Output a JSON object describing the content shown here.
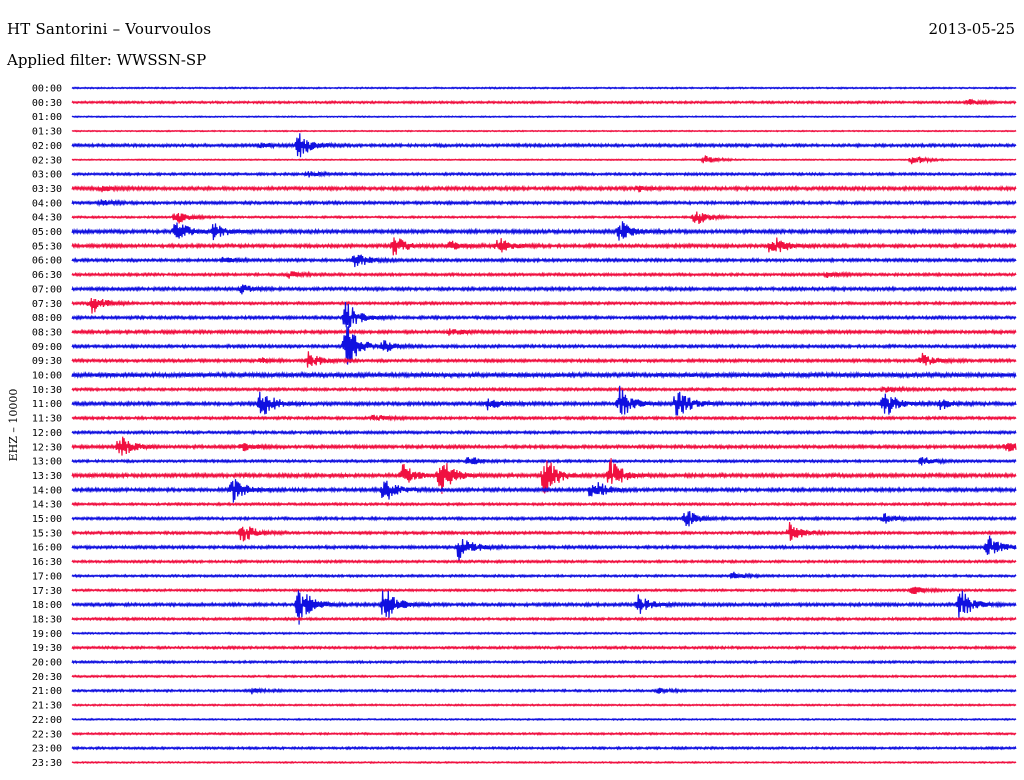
{
  "header": {
    "station": "HT Santorini – Vourvoulos",
    "date": "2013-05-25",
    "filter": "Applied filter: WWSSN-SP"
  },
  "chart_data": {
    "type": "line",
    "ylabel": "EHZ – 10000",
    "colors": {
      "blue": "#1010e0",
      "red": "#f01040"
    },
    "traces": [
      {
        "label": "00:00",
        "color": "blue",
        "noise": 0.6,
        "events": []
      },
      {
        "label": "00:30",
        "color": "red",
        "noise": 0.9,
        "events": [
          [
            0.95,
            3
          ]
        ]
      },
      {
        "label": "01:00",
        "color": "blue",
        "noise": 0.5,
        "events": []
      },
      {
        "label": "01:30",
        "color": "red",
        "noise": 0.5,
        "events": []
      },
      {
        "label": "02:00",
        "color": "blue",
        "noise": 1.2,
        "events": [
          [
            0.24,
            14
          ],
          [
            0.2,
            3
          ]
        ]
      },
      {
        "label": "02:30",
        "color": "red",
        "noise": 0.5,
        "events": [
          [
            0.67,
            5
          ],
          [
            0.89,
            6
          ]
        ]
      },
      {
        "label": "03:00",
        "color": "blue",
        "noise": 1.0,
        "events": [
          [
            0.25,
            3
          ]
        ]
      },
      {
        "label": "03:30",
        "color": "red",
        "noise": 1.4,
        "events": [
          [
            0.03,
            3
          ],
          [
            0.6,
            3
          ]
        ]
      },
      {
        "label": "04:00",
        "color": "blue",
        "noise": 1.2,
        "events": [
          [
            0.03,
            3
          ]
        ]
      },
      {
        "label": "04:30",
        "color": "red",
        "noise": 0.8,
        "events": [
          [
            0.11,
            8
          ],
          [
            0.66,
            10
          ]
        ]
      },
      {
        "label": "05:00",
        "color": "blue",
        "noise": 1.5,
        "events": [
          [
            0.11,
            12
          ],
          [
            0.15,
            9
          ],
          [
            0.58,
            12
          ]
        ]
      },
      {
        "label": "05:30",
        "color": "red",
        "noise": 1.4,
        "events": [
          [
            0.34,
            12
          ],
          [
            0.4,
            5
          ],
          [
            0.45,
            10
          ],
          [
            0.74,
            14
          ]
        ]
      },
      {
        "label": "06:00",
        "color": "blue",
        "noise": 1.2,
        "events": [
          [
            0.3,
            10
          ],
          [
            0.16,
            3
          ]
        ]
      },
      {
        "label": "06:30",
        "color": "red",
        "noise": 1.1,
        "events": [
          [
            0.23,
            4
          ],
          [
            0.8,
            3
          ]
        ]
      },
      {
        "label": "07:00",
        "color": "blue",
        "noise": 1.3,
        "events": [
          [
            0.18,
            5
          ]
        ]
      },
      {
        "label": "07:30",
        "color": "red",
        "noise": 1.1,
        "events": [
          [
            0.02,
            12
          ]
        ]
      },
      {
        "label": "08:00",
        "color": "blue",
        "noise": 1.2,
        "events": [
          [
            0.29,
            18
          ]
        ]
      },
      {
        "label": "08:30",
        "color": "red",
        "noise": 1.3,
        "events": [
          [
            0.4,
            4
          ]
        ]
      },
      {
        "label": "09:00",
        "color": "blue",
        "noise": 1.2,
        "events": [
          [
            0.29,
            25
          ],
          [
            0.33,
            6
          ]
        ]
      },
      {
        "label": "09:30",
        "color": "red",
        "noise": 1.2,
        "events": [
          [
            0.25,
            10
          ],
          [
            0.9,
            8
          ],
          [
            0.2,
            3
          ]
        ]
      },
      {
        "label": "10:00",
        "color": "blue",
        "noise": 1.8,
        "events": []
      },
      {
        "label": "10:30",
        "color": "red",
        "noise": 1.1,
        "events": [
          [
            0.86,
            4
          ]
        ]
      },
      {
        "label": "11:00",
        "color": "blue",
        "noise": 1.4,
        "events": [
          [
            0.2,
            16
          ],
          [
            0.44,
            7
          ],
          [
            0.58,
            18
          ],
          [
            0.64,
            18
          ],
          [
            0.86,
            16
          ],
          [
            0.92,
            6
          ]
        ]
      },
      {
        "label": "11:30",
        "color": "red",
        "noise": 1.1,
        "events": [
          [
            0.32,
            4
          ]
        ]
      },
      {
        "label": "12:00",
        "color": "blue",
        "noise": 1.1,
        "events": []
      },
      {
        "label": "12:30",
        "color": "red",
        "noise": 1.3,
        "events": [
          [
            0.05,
            14
          ],
          [
            0.18,
            5
          ],
          [
            0.99,
            6
          ]
        ]
      },
      {
        "label": "13:00",
        "color": "blue",
        "noise": 1.0,
        "events": [
          [
            0.42,
            6
          ],
          [
            0.9,
            5
          ]
        ]
      },
      {
        "label": "13:30",
        "color": "red",
        "noise": 1.5,
        "events": [
          [
            0.35,
            12
          ],
          [
            0.39,
            20
          ],
          [
            0.5,
            22
          ],
          [
            0.57,
            18
          ]
        ]
      },
      {
        "label": "14:00",
        "color": "blue",
        "noise": 1.4,
        "events": [
          [
            0.17,
            14
          ],
          [
            0.33,
            16
          ],
          [
            0.55,
            15
          ]
        ]
      },
      {
        "label": "14:30",
        "color": "red",
        "noise": 1.0,
        "events": []
      },
      {
        "label": "15:00",
        "color": "blue",
        "noise": 1.1,
        "events": [
          [
            0.65,
            10
          ],
          [
            0.86,
            5
          ]
        ]
      },
      {
        "label": "15:30",
        "color": "red",
        "noise": 1.1,
        "events": [
          [
            0.18,
            12
          ],
          [
            0.76,
            12
          ]
        ]
      },
      {
        "label": "16:00",
        "color": "blue",
        "noise": 1.2,
        "events": [
          [
            0.41,
            16
          ],
          [
            0.97,
            14
          ]
        ]
      },
      {
        "label": "16:30",
        "color": "red",
        "noise": 1.0,
        "events": []
      },
      {
        "label": "17:00",
        "color": "blue",
        "noise": 0.9,
        "events": [
          [
            0.7,
            4
          ]
        ]
      },
      {
        "label": "17:30",
        "color": "red",
        "noise": 0.9,
        "events": [
          [
            0.89,
            5
          ]
        ]
      },
      {
        "label": "18:00",
        "color": "blue",
        "noise": 1.3,
        "events": [
          [
            0.24,
            22
          ],
          [
            0.33,
            20
          ],
          [
            0.6,
            10
          ],
          [
            0.94,
            18
          ]
        ]
      },
      {
        "label": "18:30",
        "color": "red",
        "noise": 1.0,
        "events": []
      },
      {
        "label": "19:00",
        "color": "blue",
        "noise": 0.7,
        "events": []
      },
      {
        "label": "19:30",
        "color": "red",
        "noise": 1.0,
        "events": []
      },
      {
        "label": "20:00",
        "color": "blue",
        "noise": 0.9,
        "events": []
      },
      {
        "label": "20:30",
        "color": "red",
        "noise": 0.8,
        "events": []
      },
      {
        "label": "21:00",
        "color": "blue",
        "noise": 0.9,
        "events": [
          [
            0.19,
            3
          ],
          [
            0.62,
            3
          ]
        ]
      },
      {
        "label": "21:30",
        "color": "red",
        "noise": 0.7,
        "events": []
      },
      {
        "label": "22:00",
        "color": "blue",
        "noise": 0.6,
        "events": []
      },
      {
        "label": "22:30",
        "color": "red",
        "noise": 0.8,
        "events": []
      },
      {
        "label": "23:00",
        "color": "blue",
        "noise": 0.9,
        "events": []
      },
      {
        "label": "23:30",
        "color": "red",
        "noise": 0.6,
        "events": []
      }
    ]
  }
}
